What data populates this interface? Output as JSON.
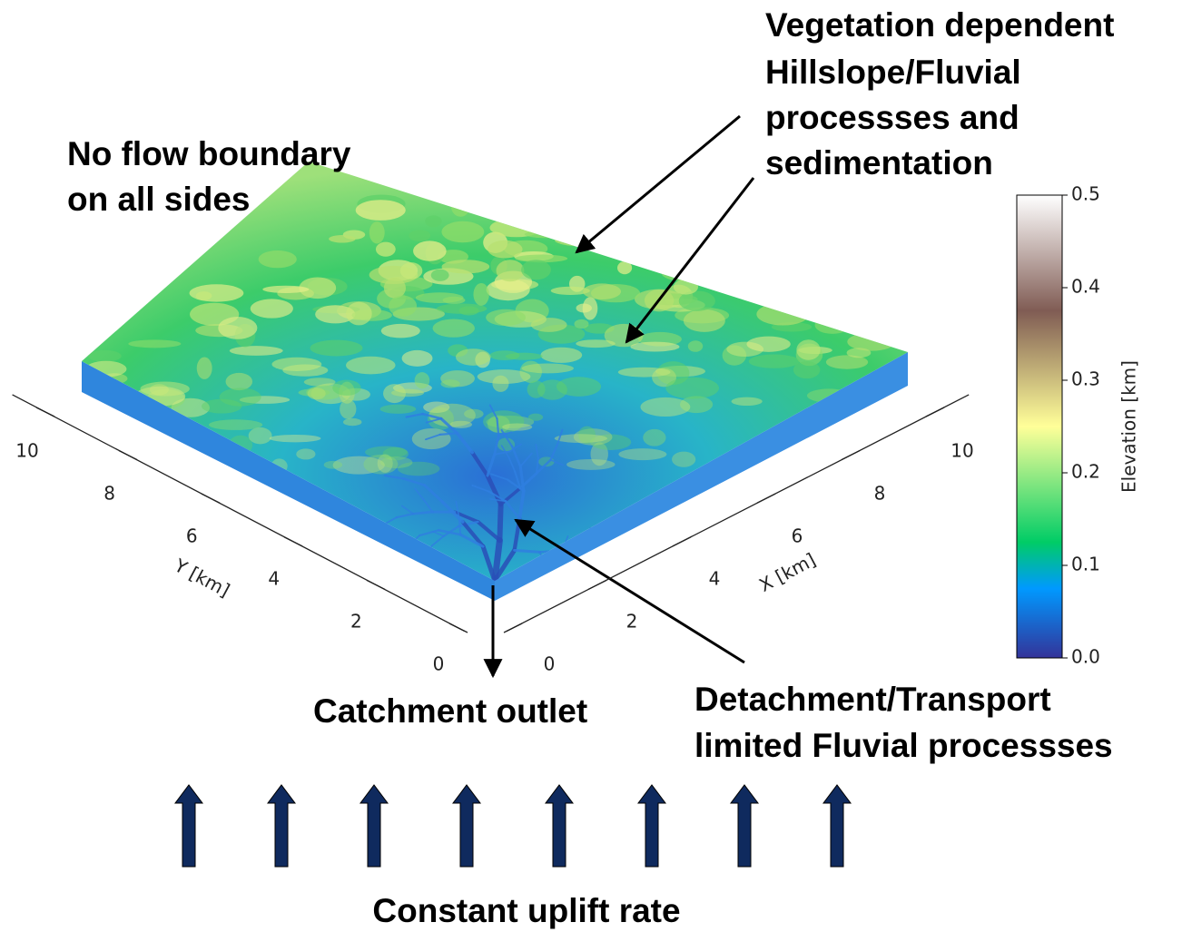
{
  "annotations": {
    "no_flow": [
      "No flow boundary",
      "on all sides"
    ],
    "vegetation": [
      "Vegetation dependent",
      "Hillslope/Fluvial",
      "processses and",
      "sedimentation"
    ],
    "outlet": "Catchment outlet",
    "fluvial": [
      "Detachment/Transport",
      "limited Fluvial processses"
    ],
    "uplift": "Constant uplift rate"
  },
  "x_axis": {
    "label": "X [km]",
    "lim": [
      0,
      10
    ],
    "ticks": [
      0,
      2,
      4,
      6,
      8,
      10
    ]
  },
  "y_axis": {
    "label": "Y [km]",
    "lim": [
      0,
      10
    ],
    "ticks": [
      0,
      2,
      4,
      6,
      8,
      10
    ]
  },
  "colorbar": {
    "label": "Elevation [km]",
    "lim": [
      0,
      0.5
    ],
    "ticks": [
      0.0,
      0.1,
      0.2,
      0.3,
      0.4,
      0.5
    ]
  }
}
